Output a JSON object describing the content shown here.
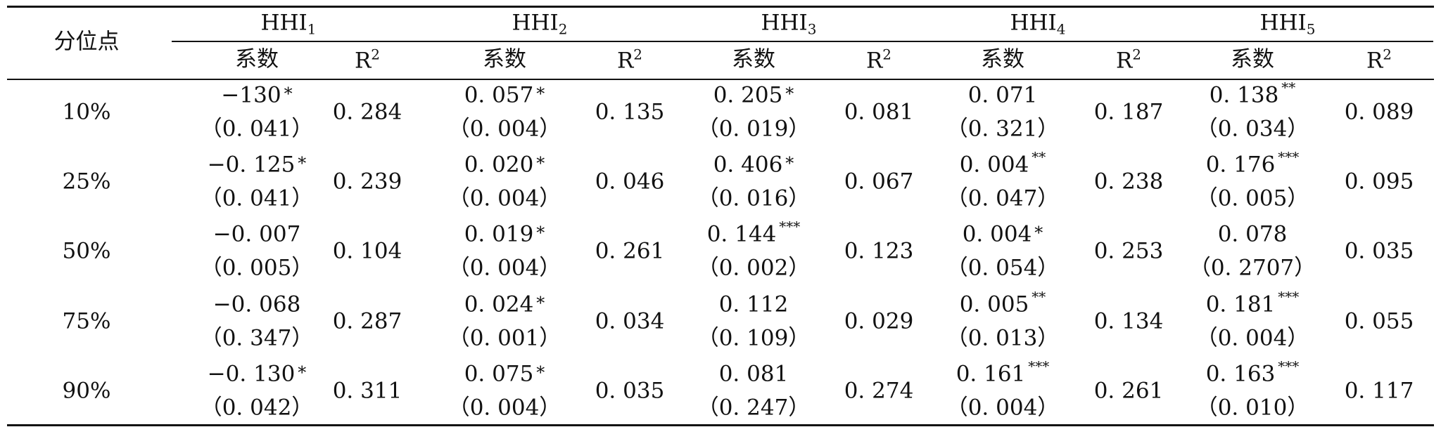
{
  "header": {
    "row_label": "分位点",
    "groups": [
      {
        "base": "HHI",
        "sub": "1"
      },
      {
        "base": "HHI",
        "sub": "2"
      },
      {
        "base": "HHI",
        "sub": "3"
      },
      {
        "base": "HHI",
        "sub": "4"
      },
      {
        "base": "HHI",
        "sub": "5"
      }
    ],
    "coef_label": "系数",
    "r2_base": "R",
    "r2_sup": "2"
  },
  "rows": [
    {
      "label": "10%",
      "cells": [
        {
          "coef": "−130",
          "stars": "*",
          "se": "（0. 041）",
          "r2": "0. 284"
        },
        {
          "coef": "0. 057",
          "stars": "*",
          "se": "（0. 004）",
          "r2": "0. 135"
        },
        {
          "coef": "0. 205",
          "stars": "*",
          "se": "（0. 019）",
          "r2": "0. 081"
        },
        {
          "coef": "0. 071",
          "stars": "",
          "se": "（0. 321）",
          "r2": "0. 187"
        },
        {
          "coef": "0. 138",
          "stars": "**",
          "se": "（0. 034）",
          "r2": "0. 089"
        }
      ]
    },
    {
      "label": "25%",
      "cells": [
        {
          "coef": "−0. 125",
          "stars": "*",
          "se": "（0. 041）",
          "r2": "0. 239"
        },
        {
          "coef": "0. 020",
          "stars": "*",
          "se": "（0. 004）",
          "r2": "0. 046"
        },
        {
          "coef": "0. 406",
          "stars": "*",
          "se": "（0. 016）",
          "r2": "0. 067"
        },
        {
          "coef": "0. 004",
          "stars": "**",
          "se": "（0. 047）",
          "r2": "0. 238"
        },
        {
          "coef": "0. 176",
          "stars": "***",
          "se": "（0. 005）",
          "r2": "0. 095"
        }
      ]
    },
    {
      "label": "50%",
      "cells": [
        {
          "coef": "−0. 007",
          "stars": "",
          "se": "（0. 005）",
          "r2": "0. 104"
        },
        {
          "coef": "0. 019",
          "stars": "*",
          "se": "（0. 004）",
          "r2": "0. 261"
        },
        {
          "coef": "0. 144",
          "stars": "***",
          "se": "（0. 002）",
          "r2": "0. 123"
        },
        {
          "coef": "0. 004",
          "stars": "*",
          "se": "（0. 054）",
          "r2": "0. 253"
        },
        {
          "coef": "0. 078",
          "stars": "",
          "se": "（0. 2707）",
          "r2": "0. 035"
        }
      ]
    },
    {
      "label": "75%",
      "cells": [
        {
          "coef": "−0. 068",
          "stars": "",
          "se": "（0. 347）",
          "r2": "0. 287"
        },
        {
          "coef": "0. 024",
          "stars": "*",
          "se": "（0. 001）",
          "r2": "0. 034"
        },
        {
          "coef": "0. 112",
          "stars": "",
          "se": "（0. 109）",
          "r2": "0. 029"
        },
        {
          "coef": "0. 005",
          "stars": "**",
          "se": "（0. 013）",
          "r2": "0. 134"
        },
        {
          "coef": "0. 181",
          "stars": "***",
          "se": "（0. 004）",
          "r2": "0. 055"
        }
      ]
    },
    {
      "label": "90%",
      "cells": [
        {
          "coef": "−0. 130",
          "stars": "*",
          "se": "（0. 042）",
          "r2": "0. 311"
        },
        {
          "coef": "0. 075",
          "stars": "*",
          "se": "（0. 004）",
          "r2": "0. 035"
        },
        {
          "coef": "0. 081",
          "stars": "",
          "se": "（0. 247）",
          "r2": "0. 274"
        },
        {
          "coef": "0. 161",
          "stars": "***",
          "se": "（0. 004）",
          "r2": "0. 261"
        },
        {
          "coef": "0. 163",
          "stars": "***",
          "se": "（0. 010）",
          "r2": "0. 117"
        }
      ]
    }
  ]
}
